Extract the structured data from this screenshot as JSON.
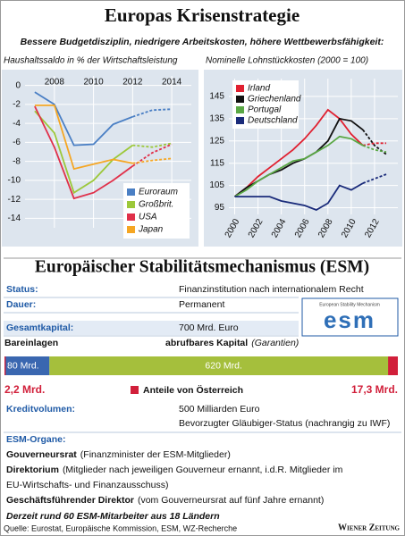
{
  "header": {
    "title": "Europas Krisenstrategie",
    "subtitle": "Bessere Budgetdisziplin, niedrigere Arbeitskosten, höhere Wettbewerbsfähigkeit:"
  },
  "chart_data": [
    {
      "type": "line",
      "title": "Haushaltssaldo in % der Wirtschaftsleistung",
      "x": [
        2007,
        2008,
        2009,
        2010,
        2011,
        2012,
        2013,
        2014
      ],
      "xlim": [
        2006.5,
        2015
      ],
      "xticks": [
        2008,
        2010,
        2012,
        2014
      ],
      "xaxis": "top",
      "ylim": [
        -15,
        1
      ],
      "yticks": [
        0,
        -2,
        -4,
        -6,
        -8,
        -10,
        -12,
        -14
      ],
      "grid": true,
      "legend": "lower right",
      "forecast_from": 2012,
      "series": [
        {
          "name": "Euroraum",
          "color": "#4a7fc4",
          "values": [
            -0.7,
            -2,
            -6.3,
            -6.2,
            -4.1,
            -3.3,
            -2.6,
            -2.5
          ]
        },
        {
          "name": "Großbrit.",
          "color": "#9cc83a",
          "values": [
            -2.7,
            -5,
            -11.3,
            -10,
            -7.8,
            -6.3,
            -6.5,
            -6.1
          ]
        },
        {
          "name": "USA",
          "color": "#e0304a",
          "values": [
            -2.2,
            -6.5,
            -11.9,
            -11.3,
            -10,
            -8.5,
            -7.1,
            -6.2
          ]
        },
        {
          "name": "Japan",
          "color": "#f5a623",
          "values": [
            -2.1,
            -2.1,
            -8.8,
            -8.3,
            -7.8,
            -8.2,
            -7.9,
            -7.7
          ]
        }
      ]
    },
    {
      "type": "line",
      "title": "Nominelle Lohnstückkosten (2000 = 100)",
      "x": [
        2000,
        2001,
        2002,
        2003,
        2004,
        2005,
        2006,
        2007,
        2008,
        2009,
        2010,
        2011,
        2012,
        2013
      ],
      "xlim": [
        1999.5,
        2014
      ],
      "xticks": [
        2000,
        2002,
        2004,
        2006,
        2008,
        2010,
        2012
      ],
      "xaxis": "bottom",
      "ylim": [
        92,
        153
      ],
      "yticks": [
        95,
        105,
        115,
        125,
        135,
        145
      ],
      "grid": true,
      "legend": "upper left",
      "forecast_from": 2011,
      "series": [
        {
          "name": "Irland",
          "color": "#e02030",
          "values": [
            100,
            104,
            109,
            113,
            117,
            121,
            126,
            132,
            139,
            135,
            128,
            123,
            124,
            124
          ]
        },
        {
          "name": "Griechenland",
          "color": "#111111",
          "values": [
            100,
            104,
            107,
            110,
            112,
            115,
            117,
            120,
            125,
            135,
            134,
            130,
            123,
            119
          ]
        },
        {
          "name": "Portugal",
          "color": "#5aa845",
          "values": [
            100,
            103,
            107,
            110,
            113,
            116,
            117,
            120,
            123,
            127,
            126,
            123,
            121,
            120
          ]
        },
        {
          "name": "Deutschland",
          "color": "#1a2b7a",
          "values": [
            100,
            100,
            100,
            100,
            98,
            97,
            96,
            94,
            97,
            105,
            103,
            106,
            108,
            110
          ]
        }
      ]
    },
    {
      "type": "stacked-bar",
      "series": [
        {
          "name": "Bareinlagen",
          "color": "#3a67b0",
          "values": [
            80
          ],
          "value_labels": [
            "80 Mrd."
          ]
        },
        {
          "name": "abrufbares Kapital",
          "note": "(Garantien)",
          "color": "#a5bf3c",
          "values": [
            620
          ],
          "value_labels": [
            "620 Mrd."
          ]
        }
      ],
      "highlight": {
        "name": "Anteile von Österreich",
        "color": "#d11f3a",
        "values": [
          2.2,
          17.3
        ],
        "value_labels": [
          "2,2 Mrd.",
          "17,3 Mrd."
        ]
      }
    }
  ],
  "esm": {
    "title": "Europäischer Stabilitätsmechanismus (ESM)",
    "rows": [
      [
        "Status:",
        "Finanzinstitution nach internationalem Recht"
      ],
      [
        "Dauer:",
        "Permanent"
      ],
      [
        "Gesamtkapital:",
        "700 Mrd. Euro"
      ]
    ],
    "logo": {
      "caption": "European Stability Mechanism",
      "mark": "esm"
    },
    "credit": {
      "label": "Kreditvolumen:",
      "lines": [
        "500 Milliarden Euro",
        "Bevorzugter Gläubiger-Status (nachrangig zu IWF)"
      ]
    },
    "organs": {
      "label": "ESM-Organe:",
      "items": [
        {
          "name": "Gouverneursrat",
          "lines": [
            "(Finanzminister der ESM-Mitglieder)"
          ]
        },
        {
          "name": "Direktorium",
          "lines": [
            "(Mitglieder nach jeweiligen Gouverneur ernannt, i.d.R. Mitglieder im",
            "EU-Wirtschafts- und Finanzausschuss)"
          ]
        },
        {
          "name": "Geschäftsführender Direktor",
          "lines": [
            "(vom Gouverneursrat auf fünf Jahre ernannt)"
          ]
        }
      ]
    },
    "staff": "Derzeit rund 60 ESM-Mitarbeiter aus 18 Ländern"
  },
  "footer": {
    "source": "Quelle: Eurostat, Europäische Kommission, ESM, WZ-Recherche",
    "brand": "Wiener Zeitung"
  }
}
